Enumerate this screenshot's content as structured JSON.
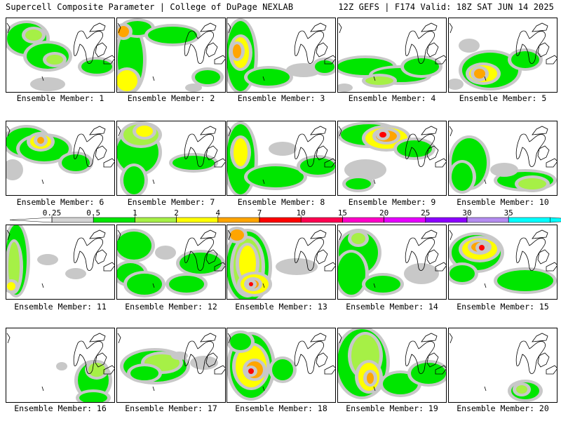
{
  "header": {
    "title_left": "Supercell Composite Parameter | College of DuPage NEXLAB",
    "title_right": "12Z GEFS | F174 Valid: 18Z SAT JUN 14 2025"
  },
  "colorbar": {
    "ticks": [
      "0.25",
      "0.5",
      "1",
      "2",
      "4",
      "7",
      "10",
      "15",
      "20",
      "25",
      "30",
      "35"
    ],
    "colors": [
      "#d3d3d3",
      "#00e600",
      "#a6f046",
      "#ffff00",
      "#ffa500",
      "#ff0000",
      "#ff0050",
      "#ff00c8",
      "#e600ff",
      "#8c00ff",
      "#b48cf0",
      "#00ffff"
    ]
  },
  "panels": [
    {
      "label": "Ensemble Member: 1"
    },
    {
      "label": "Ensemble Member: 2"
    },
    {
      "label": "Ensemble Member: 3"
    },
    {
      "label": "Ensemble Member: 4"
    },
    {
      "label": "Ensemble Member: 5"
    },
    {
      "label": "Ensemble Member: 6"
    },
    {
      "label": "Ensemble Member: 7"
    },
    {
      "label": "Ensemble Member: 8"
    },
    {
      "label": "Ensemble Member: 9"
    },
    {
      "label": "Ensemble Member: 10"
    },
    {
      "label": "Ensemble Member: 11"
    },
    {
      "label": "Ensemble Member: 12"
    },
    {
      "label": "Ensemble Member: 13"
    },
    {
      "label": "Ensemble Member: 14"
    },
    {
      "label": "Ensemble Member: 15"
    },
    {
      "label": "Ensemble Member: 16"
    },
    {
      "label": "Ensemble Member: 17"
    },
    {
      "label": "Ensemble Member: 18"
    },
    {
      "label": "Ensemble Member: 19"
    },
    {
      "label": "Ensemble Member: 20"
    }
  ]
}
